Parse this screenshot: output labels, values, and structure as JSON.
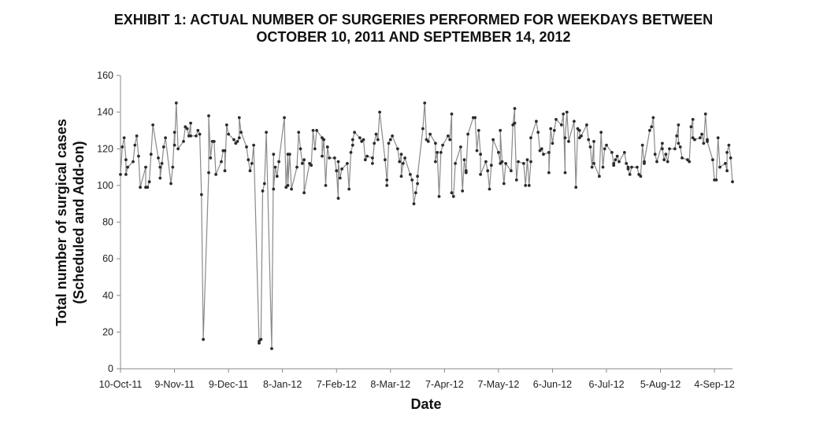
{
  "chart_data": {
    "type": "line",
    "title_line1": "EXHIBIT 1: ACTUAL NUMBER OF SURGERIES PERFORMED FOR WEEKDAYS BETWEEN",
    "title_line2": "OCTOBER 10, 2011 AND SEPTEMBER 14, 2012",
    "xlabel": "Date",
    "ylabel_line1": "Total number of surgical cases",
    "ylabel_line2": "(Scheduled and Add-on)",
    "ylim": [
      0,
      160
    ],
    "yticks": [
      0,
      20,
      40,
      60,
      80,
      100,
      120,
      140,
      160
    ],
    "x_start": "10-Oct-11",
    "x_end": "14-Sep-12",
    "xtick_labels": [
      "10-Oct-11",
      "9-Nov-11",
      "9-Dec-11",
      "8-Jan-12",
      "7-Feb-12",
      "8-Mar-12",
      "7-Apr-12",
      "7-May-12",
      "6-Jun-12",
      "6-Jul-12",
      "5-Aug-12",
      "4-Sep-12"
    ],
    "grid": false,
    "legend": "none",
    "line_color": "#8a8a8a",
    "marker_color": "#2b2b2b",
    "values": [
      106,
      121,
      126,
      114,
      106,
      110,
      113,
      122,
      127,
      116,
      99,
      110,
      99,
      99,
      102,
      117,
      133,
      115,
      110,
      104,
      112,
      121,
      126,
      101,
      110,
      129,
      122,
      145,
      120,
      124,
      132,
      131,
      127,
      134,
      127,
      127,
      130,
      128,
      95,
      16,
      107,
      138,
      115,
      124,
      124,
      106,
      113,
      119,
      119,
      108,
      133,
      128,
      125,
      123,
      124,
      126,
      137,
      129,
      121,
      114,
      108,
      112,
      122,
      14,
      15,
      16,
      97,
      101,
      129,
      11,
      117,
      98,
      110,
      105,
      113,
      137,
      99,
      117,
      100,
      117,
      98,
      110,
      129,
      120,
      112,
      114,
      96,
      112,
      111,
      130,
      120,
      130,
      126,
      116,
      125,
      100,
      121,
      115,
      115,
      108,
      93,
      113,
      104,
      109,
      112,
      98,
      118,
      122,
      125,
      129,
      126,
      124,
      125,
      114,
      116,
      115,
      112,
      123,
      128,
      125,
      140,
      114,
      103,
      100,
      123,
      125,
      127,
      120,
      113,
      117,
      105,
      112,
      115,
      106,
      103,
      90,
      96,
      101,
      105,
      131,
      145,
      125,
      124,
      128,
      123,
      113,
      118,
      94,
      118,
      122,
      127,
      125,
      139,
      96,
      94,
      112,
      121,
      97,
      114,
      107,
      108,
      128,
      137,
      137,
      119,
      130,
      117,
      106,
      113,
      108,
      98,
      111,
      125,
      118,
      112,
      130,
      113,
      101,
      112,
      108,
      133,
      142,
      134,
      103,
      113,
      112,
      100,
      114,
      100,
      113,
      126,
      135,
      129,
      119,
      120,
      117,
      118,
      107,
      131,
      123,
      130,
      136,
      133,
      139,
      107,
      126,
      140,
      124,
      135,
      99,
      131,
      130,
      126,
      127,
      133,
      125,
      121,
      110,
      124,
      112,
      105,
      129,
      110,
      120,
      122,
      118,
      112,
      111,
      114,
      116,
      113,
      118,
      112,
      110,
      109,
      106,
      110,
      110,
      106,
      105,
      122,
      112,
      113,
      130,
      132,
      137,
      117,
      113,
      123,
      120,
      114,
      117,
      113,
      120,
      120,
      127,
      133,
      123,
      121,
      115,
      114,
      113,
      132,
      136,
      126,
      125,
      126,
      128,
      123,
      139,
      125,
      124,
      114,
      103,
      103,
      126,
      110,
      112,
      108,
      118,
      122,
      115,
      102
    ]
  }
}
